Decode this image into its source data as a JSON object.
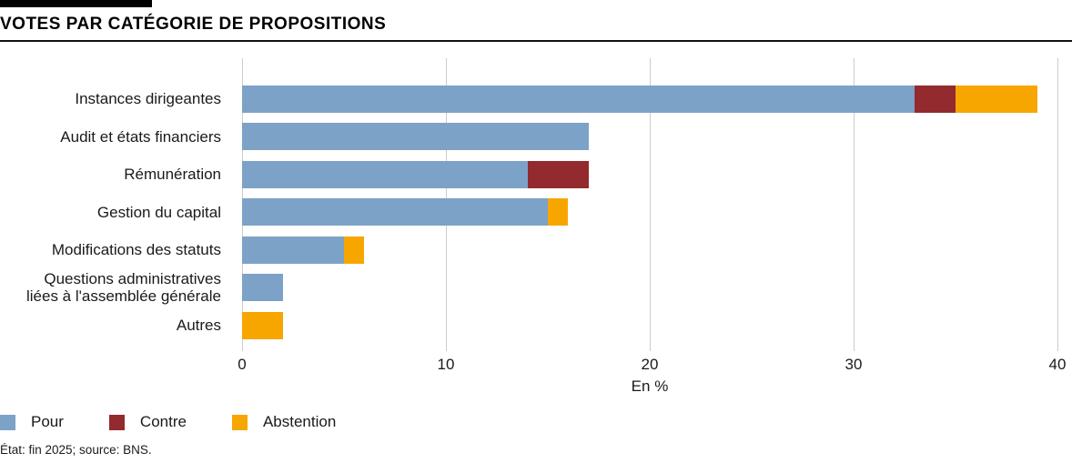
{
  "header": {
    "title": "VOTES PAR CATÉGORIE DE PROPOSITIONS"
  },
  "chart_data": {
    "type": "bar",
    "orientation": "horizontal",
    "stacked": true,
    "title": "VOTES PAR CATÉGORIE DE PROPOSITIONS",
    "categories": [
      "Instances dirigeantes",
      "Audit et états financiers",
      "Rémunération",
      "Gestion du capital",
      "Modifications des statuts",
      "Questions administratives\nliées à l'assemblée générale",
      "Autres"
    ],
    "series": [
      {
        "name": "Pour",
        "color": "#7CA2C7",
        "values": [
          33,
          17,
          14,
          15,
          5,
          2,
          0
        ]
      },
      {
        "name": "Contre",
        "color": "#932A2E",
        "values": [
          2,
          0,
          3,
          0,
          0,
          0,
          0
        ]
      },
      {
        "name": "Abstention",
        "color": "#F7A600",
        "values": [
          4,
          0,
          0,
          1,
          1,
          0,
          2
        ]
      }
    ],
    "totals": [
      39,
      17,
      17,
      16,
      6,
      2,
      2
    ],
    "xlabel": "En %",
    "xlim": [
      0,
      40
    ],
    "xticks": [
      0,
      10,
      20,
      30,
      40
    ],
    "grid": "vertical",
    "gridline_color": "#cccccc",
    "legend_position": "bottom"
  },
  "footer": {
    "note": "État: fin 2025; source: BNS."
  }
}
